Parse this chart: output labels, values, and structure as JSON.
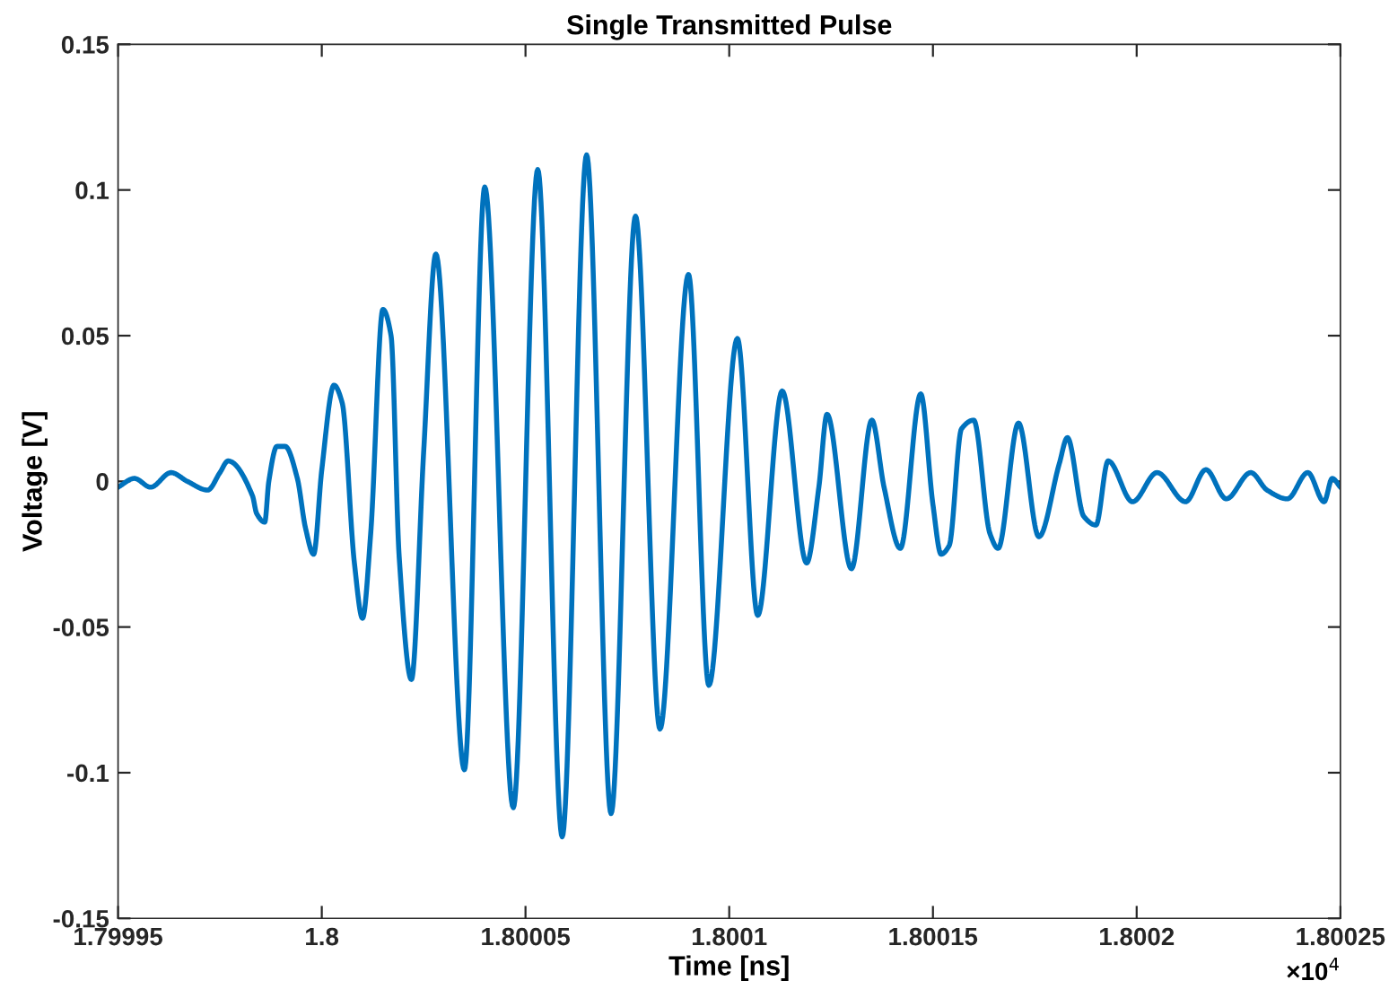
{
  "chart_data": {
    "type": "line",
    "title": "Single Transmitted Pulse",
    "xlabel": "Time [ns]",
    "ylabel": "Voltage [V]",
    "annotations": [
      "×10$^{4}$"
    ],
    "xlim": [
      1.79995,
      1.80025
    ],
    "xticks": [
      1.79995,
      1.8,
      1.80005,
      1.8001,
      1.80015,
      1.8002,
      1.80025
    ],
    "ylim": [
      -0.15,
      0.15
    ],
    "yticks": [
      -0.15,
      -0.1,
      -0.05,
      0,
      0.05,
      0.1,
      0.15
    ],
    "grid": false,
    "marker": "none",
    "line_style": "solid",
    "series": [
      {
        "color": "#0072bd",
        "x": [
          1.79995,
          1.799954,
          1.799958,
          1.799963,
          1.799967,
          1.799972,
          1.799975,
          1.799977,
          1.799983,
          1.799984,
          1.799986,
          1.799987,
          1.799989,
          1.799991,
          1.799994,
          1.799996,
          1.799998,
          1.8,
          1.800003,
          1.800005,
          1.800008,
          1.80001,
          1.800012,
          1.800015,
          1.800017,
          1.800019,
          1.800022,
          1.800025,
          1.800028,
          1.800035,
          1.80004,
          1.800047,
          1.800053,
          1.800059,
          1.800065,
          1.800071,
          1.800077,
          1.800083,
          1.80009,
          1.800095,
          1.800102,
          1.800107,
          1.800113,
          1.800119,
          1.800122,
          1.800124,
          1.80013,
          1.800135,
          1.800138,
          1.800142,
          1.800147,
          1.80015,
          1.800152,
          1.800154,
          1.800157,
          1.80016,
          1.800164,
          1.800166,
          1.800171,
          1.800176,
          1.800181,
          1.800183,
          1.800187,
          1.80019,
          1.800193,
          1.800199,
          1.800205,
          1.800212,
          1.800217,
          1.800222,
          1.800228,
          1.800232,
          1.800237,
          1.800242,
          1.800246,
          1.800248,
          1.80025
        ],
        "values": [
          -0.002,
          0.001,
          -0.002,
          0.003,
          0.0,
          -0.003,
          0.003,
          0.007,
          -0.005,
          -0.011,
          -0.014,
          0.0,
          0.012,
          0.012,
          0.001,
          -0.016,
          -0.025,
          0.004,
          0.033,
          0.027,
          -0.028,
          -0.047,
          -0.018,
          0.059,
          0.05,
          -0.026,
          -0.068,
          0.01,
          0.078,
          -0.099,
          0.101,
          -0.112,
          0.107,
          -0.122,
          0.112,
          -0.114,
          0.091,
          -0.085,
          0.071,
          -0.07,
          0.049,
          -0.046,
          0.031,
          -0.028,
          -0.002,
          0.023,
          -0.03,
          0.021,
          -0.002,
          -0.023,
          0.03,
          -0.008,
          -0.025,
          -0.022,
          0.018,
          0.021,
          -0.018,
          -0.023,
          0.02,
          -0.019,
          0.006,
          0.015,
          -0.012,
          -0.015,
          0.007,
          -0.007,
          0.003,
          -0.007,
          0.004,
          -0.006,
          0.003,
          -0.003,
          -0.006,
          0.003,
          -0.007,
          0.001,
          -0.002
        ]
      }
    ]
  }
}
